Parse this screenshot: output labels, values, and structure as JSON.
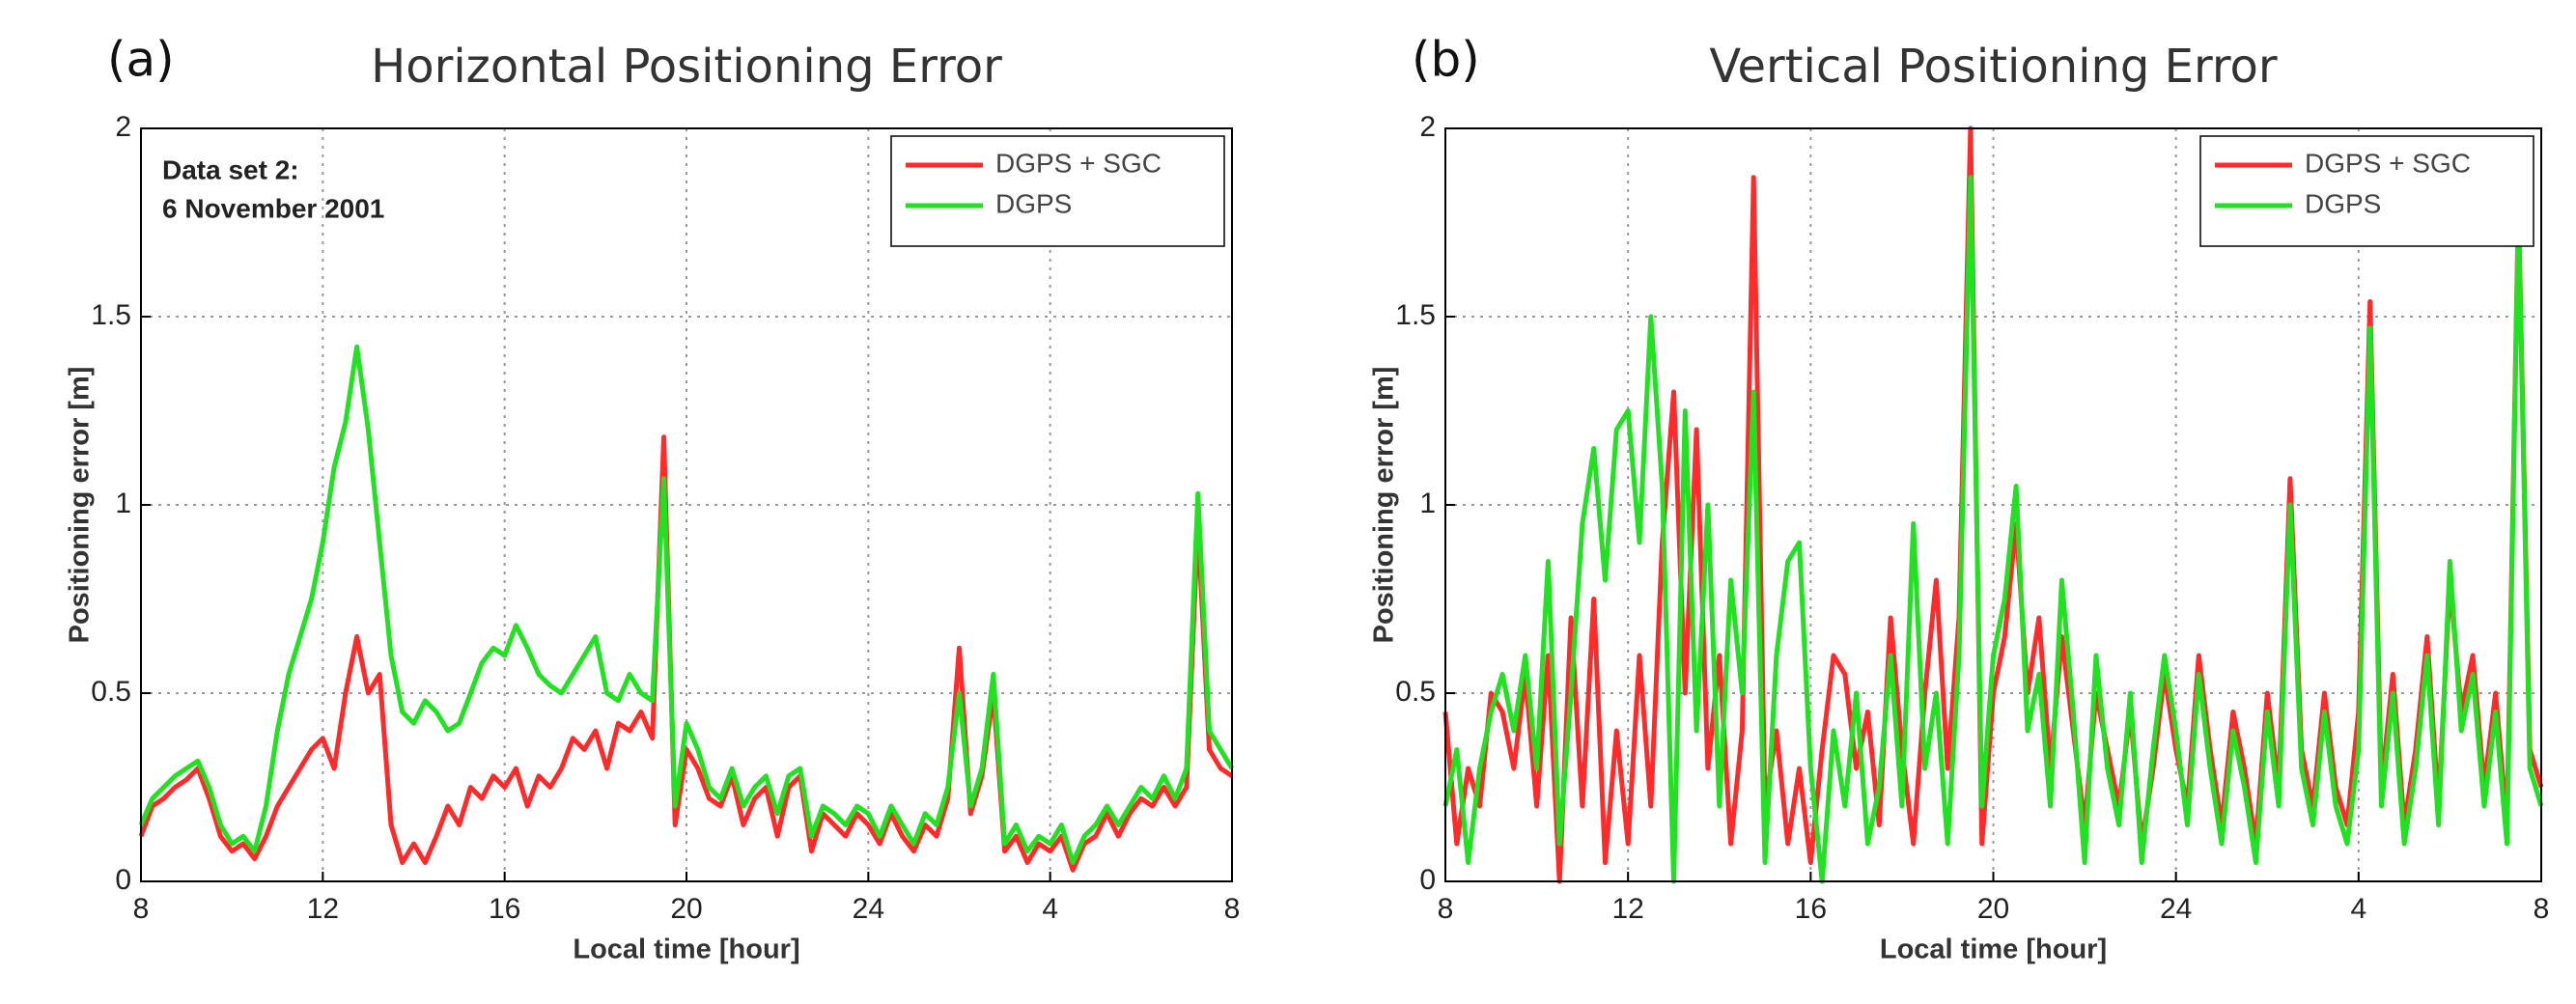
{
  "chart_data": [
    {
      "type": "line",
      "panel_label": "(a)",
      "title": "Horizontal Positioning Error",
      "x_label": "Local time [hour]",
      "y_label": "Positioning error [m]",
      "annotation": [
        "Data set 2:",
        "6 November 2001"
      ],
      "xlim": [
        8,
        32
      ],
      "ylim": [
        0,
        2
      ],
      "xticks": [
        8,
        12,
        16,
        20,
        24,
        {
          "value": 28,
          "label": "4"
        },
        {
          "value": 32,
          "label": "8"
        }
      ],
      "yticks": [
        0,
        0.5,
        1,
        1.5,
        2
      ],
      "grid": true,
      "legend": "upper right",
      "x": [
        8,
        8.25,
        8.5,
        8.75,
        9,
        9.25,
        9.5,
        9.75,
        10,
        10.25,
        10.5,
        10.75,
        11,
        11.25,
        11.5,
        11.75,
        12,
        12.25,
        12.5,
        12.75,
        13,
        13.25,
        13.5,
        13.75,
        14,
        14.25,
        14.5,
        14.75,
        15,
        15.25,
        15.5,
        15.75,
        16,
        16.25,
        16.5,
        16.75,
        17,
        17.25,
        17.5,
        17.75,
        18,
        18.25,
        18.5,
        18.75,
        19,
        19.25,
        19.5,
        19.75,
        20,
        20.25,
        20.5,
        20.75,
        21,
        21.25,
        21.5,
        21.75,
        22,
        22.25,
        22.5,
        22.75,
        23,
        23.25,
        23.5,
        23.75,
        24,
        24.25,
        24.5,
        24.75,
        25,
        25.25,
        25.5,
        25.75,
        26,
        26.25,
        26.5,
        26.75,
        27,
        27.25,
        27.5,
        27.75,
        28,
        28.25,
        28.5,
        28.75,
        29,
        29.25,
        29.5,
        29.75,
        30,
        30.25,
        30.5,
        30.75,
        31,
        31.25,
        31.5,
        31.75,
        32
      ],
      "series": [
        {
          "name": "DGPS + SGC",
          "color": "#ff2a2a",
          "values": [
            0.12,
            0.2,
            0.22,
            0.25,
            0.27,
            0.3,
            0.22,
            0.12,
            0.08,
            0.1,
            0.06,
            0.12,
            0.2,
            0.25,
            0.3,
            0.35,
            0.38,
            0.3,
            0.5,
            0.65,
            0.5,
            0.55,
            0.15,
            0.05,
            0.1,
            0.05,
            0.12,
            0.2,
            0.15,
            0.25,
            0.22,
            0.28,
            0.25,
            0.3,
            0.2,
            0.28,
            0.25,
            0.3,
            0.38,
            0.35,
            0.4,
            0.3,
            0.42,
            0.4,
            0.45,
            0.38,
            1.18,
            0.15,
            0.35,
            0.3,
            0.22,
            0.2,
            0.28,
            0.15,
            0.22,
            0.25,
            0.12,
            0.25,
            0.28,
            0.08,
            0.18,
            0.15,
            0.12,
            0.18,
            0.15,
            0.1,
            0.18,
            0.12,
            0.08,
            0.15,
            0.12,
            0.22,
            0.62,
            0.18,
            0.28,
            0.5,
            0.08,
            0.12,
            0.05,
            0.1,
            0.08,
            0.12,
            0.03,
            0.1,
            0.12,
            0.18,
            0.12,
            0.18,
            0.22,
            0.2,
            0.25,
            0.2,
            0.25,
            0.95,
            0.35,
            0.3,
            0.28
          ]
        },
        {
          "name": "DGPS",
          "color": "#22e022",
          "values": [
            0.15,
            0.22,
            0.25,
            0.28,
            0.3,
            0.32,
            0.25,
            0.15,
            0.1,
            0.12,
            0.08,
            0.2,
            0.4,
            0.55,
            0.65,
            0.75,
            0.9,
            1.1,
            1.22,
            1.42,
            1.2,
            0.9,
            0.6,
            0.45,
            0.42,
            0.48,
            0.45,
            0.4,
            0.42,
            0.5,
            0.58,
            0.62,
            0.6,
            0.68,
            0.62,
            0.55,
            0.52,
            0.5,
            0.55,
            0.6,
            0.65,
            0.5,
            0.48,
            0.55,
            0.5,
            0.48,
            1.07,
            0.2,
            0.42,
            0.35,
            0.25,
            0.22,
            0.3,
            0.2,
            0.25,
            0.28,
            0.18,
            0.28,
            0.3,
            0.12,
            0.2,
            0.18,
            0.15,
            0.2,
            0.18,
            0.12,
            0.2,
            0.15,
            0.1,
            0.18,
            0.15,
            0.25,
            0.5,
            0.2,
            0.3,
            0.55,
            0.1,
            0.15,
            0.08,
            0.12,
            0.1,
            0.15,
            0.05,
            0.12,
            0.15,
            0.2,
            0.15,
            0.2,
            0.25,
            0.22,
            0.28,
            0.22,
            0.3,
            1.03,
            0.4,
            0.35,
            0.3
          ]
        }
      ]
    },
    {
      "type": "line",
      "panel_label": "(b)",
      "title": "Vertical Positioning Error",
      "x_label": "Local time [hour]",
      "y_label": "Positioning error [m]",
      "xlim": [
        8,
        32
      ],
      "ylim": [
        0,
        2
      ],
      "xticks": [
        8,
        12,
        16,
        20,
        24,
        {
          "value": 28,
          "label": "4"
        },
        {
          "value": 32,
          "label": "8"
        }
      ],
      "yticks": [
        0,
        0.5,
        1,
        1.5,
        2
      ],
      "grid": true,
      "legend": "upper right",
      "x": [
        8,
        8.25,
        8.5,
        8.75,
        9,
        9.25,
        9.5,
        9.75,
        10,
        10.25,
        10.5,
        10.75,
        11,
        11.25,
        11.5,
        11.75,
        12,
        12.25,
        12.5,
        12.75,
        13,
        13.25,
        13.5,
        13.75,
        14,
        14.25,
        14.5,
        14.75,
        15,
        15.25,
        15.5,
        15.75,
        16,
        16.25,
        16.5,
        16.75,
        17,
        17.25,
        17.5,
        17.75,
        18,
        18.25,
        18.5,
        18.75,
        19,
        19.25,
        19.5,
        19.75,
        20,
        20.25,
        20.5,
        20.75,
        21,
        21.25,
        21.5,
        21.75,
        22,
        22.25,
        22.5,
        22.75,
        23,
        23.25,
        23.5,
        23.75,
        24,
        24.25,
        24.5,
        24.75,
        25,
        25.25,
        25.5,
        25.75,
        26,
        26.25,
        26.5,
        26.75,
        27,
        27.25,
        27.5,
        27.75,
        28,
        28.25,
        28.5,
        28.75,
        29,
        29.25,
        29.5,
        29.75,
        30,
        30.25,
        30.5,
        30.75,
        31,
        31.25,
        31.5,
        31.75,
        32
      ],
      "series": [
        {
          "name": "DGPS + SGC",
          "color": "#ff2a2a",
          "values": [
            0.45,
            0.1,
            0.3,
            0.2,
            0.5,
            0.45,
            0.3,
            0.55,
            0.2,
            0.6,
            0.0,
            0.7,
            0.2,
            0.75,
            0.05,
            0.4,
            0.1,
            0.6,
            0.2,
            0.9,
            1.3,
            0.5,
            1.2,
            0.3,
            0.6,
            0.1,
            0.4,
            1.87,
            0.2,
            0.4,
            0.1,
            0.3,
            0.05,
            0.35,
            0.6,
            0.55,
            0.3,
            0.45,
            0.15,
            0.7,
            0.35,
            0.1,
            0.5,
            0.8,
            0.3,
            0.7,
            2.0,
            0.1,
            0.5,
            0.65,
            0.95,
            0.5,
            0.7,
            0.3,
            0.65,
            0.4,
            0.15,
            0.5,
            0.35,
            0.2,
            0.45,
            0.1,
            0.3,
            0.55,
            0.35,
            0.2,
            0.6,
            0.35,
            0.15,
            0.45,
            0.3,
            0.1,
            0.5,
            0.25,
            1.07,
            0.35,
            0.2,
            0.5,
            0.25,
            0.15,
            0.45,
            1.54,
            0.25,
            0.55,
            0.15,
            0.35,
            0.65,
            0.2,
            0.8,
            0.45,
            0.6,
            0.25,
            0.5,
            0.15,
            1.8,
            0.35,
            0.25
          ]
        },
        {
          "name": "DGPS",
          "color": "#22e022",
          "values": [
            0.2,
            0.35,
            0.05,
            0.3,
            0.45,
            0.55,
            0.4,
            0.6,
            0.3,
            0.85,
            0.1,
            0.5,
            0.95,
            1.15,
            0.8,
            1.2,
            1.25,
            0.9,
            1.5,
            1.05,
            0.0,
            1.25,
            0.4,
            1.0,
            0.2,
            0.8,
            0.5,
            1.3,
            0.05,
            0.6,
            0.85,
            0.9,
            0.3,
            0.0,
            0.4,
            0.2,
            0.5,
            0.1,
            0.25,
            0.6,
            0.2,
            0.95,
            0.3,
            0.5,
            0.1,
            0.6,
            1.87,
            0.2,
            0.6,
            0.75,
            1.05,
            0.4,
            0.55,
            0.2,
            0.8,
            0.45,
            0.05,
            0.6,
            0.3,
            0.15,
            0.5,
            0.05,
            0.35,
            0.6,
            0.4,
            0.15,
            0.55,
            0.3,
            0.1,
            0.4,
            0.25,
            0.05,
            0.45,
            0.2,
            1.0,
            0.3,
            0.15,
            0.45,
            0.2,
            0.1,
            0.35,
            1.47,
            0.2,
            0.5,
            0.1,
            0.3,
            0.6,
            0.15,
            0.85,
            0.4,
            0.55,
            0.2,
            0.45,
            0.1,
            1.78,
            0.3,
            0.2
          ]
        }
      ]
    }
  ]
}
